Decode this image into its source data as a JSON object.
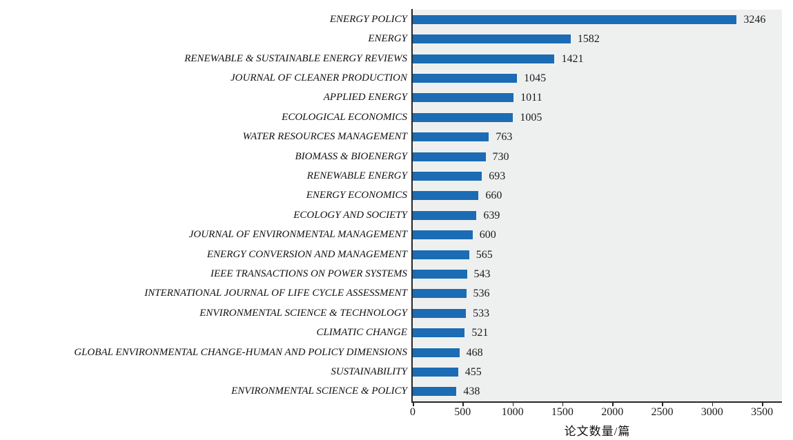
{
  "chart_data": {
    "type": "bar",
    "orientation": "horizontal",
    "title": "",
    "xlabel": "论文数量/篇",
    "ylabel": "",
    "categories": [
      "ENERGY POLICY",
      "ENERGY",
      "RENEWABLE & SUSTAINABLE ENERGY REVIEWS",
      "JOURNAL OF CLEANER PRODUCTION",
      "APPLIED ENERGY",
      "ECOLOGICAL ECONOMICS",
      "WATER RESOURCES MANAGEMENT",
      "BIOMASS & BIOENERGY",
      "RENEWABLE ENERGY",
      "ENERGY ECONOMICS",
      "ECOLOGY AND SOCIETY",
      "JOURNAL OF ENVIRONMENTAL MANAGEMENT",
      "ENERGY CONVERSION AND MANAGEMENT",
      "IEEE TRANSACTIONS ON POWER SYSTEMS",
      "INTERNATIONAL JOURNAL OF LIFE CYCLE ASSESSMENT",
      "ENVIRONMENTAL SCIENCE & TECHNOLOGY",
      "CLIMATIC CHANGE",
      "GLOBAL ENVIRONMENTAL CHANGE-HUMAN AND POLICY DIMENSIONS",
      "SUSTAINABILITY",
      "ENVIRONMENTAL SCIENCE & POLICY"
    ],
    "values": [
      3246,
      1582,
      1421,
      1045,
      1011,
      1005,
      763,
      730,
      693,
      660,
      639,
      600,
      565,
      543,
      536,
      533,
      521,
      468,
      455,
      438
    ],
    "x_ticks": [
      0,
      500,
      1000,
      1500,
      2000,
      2500,
      3000,
      3500
    ],
    "xlim": [
      0,
      3700
    ],
    "grid": false,
    "legend": "none",
    "bar_color": "#1b6cb4",
    "plot_background": "#eef0ef",
    "axis_color": "#262626"
  }
}
